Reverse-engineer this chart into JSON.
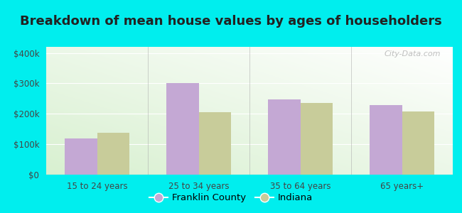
{
  "title": "Breakdown of mean house values by ages of householders",
  "categories": [
    "15 to 24 years",
    "25 to 34 years",
    "35 to 64 years",
    "65 years+"
  ],
  "franklin_county": [
    120000,
    300000,
    248000,
    228000
  ],
  "indiana": [
    138000,
    205000,
    235000,
    207000
  ],
  "franklin_color": "#c4a8d4",
  "indiana_color": "#c8cc9a",
  "ylim": [
    0,
    420000
  ],
  "yticks": [
    0,
    100000,
    200000,
    300000,
    400000
  ],
  "background_color": "#00eeee",
  "bar_width": 0.32,
  "title_fontsize": 13,
  "tick_fontsize": 8.5,
  "legend_fontsize": 9.5,
  "watermark": "City-Data.com"
}
